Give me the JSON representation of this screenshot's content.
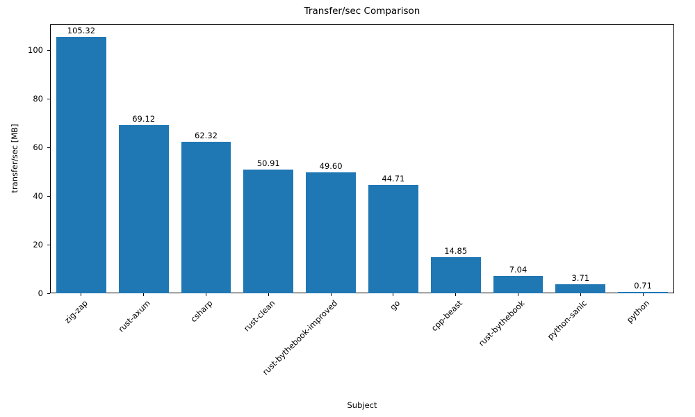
{
  "chart_data": {
    "type": "bar",
    "title": "Transfer/sec Comparison",
    "xlabel": "Subject",
    "ylabel": "transfer/sec [MB]",
    "categories": [
      "zig-zap",
      "rust-axum",
      "csharp",
      "rust-clean",
      "rust-bythebook-improved",
      "go",
      "cpp-beast",
      "rust-bythebook",
      "python-sanic",
      "python"
    ],
    "values": [
      105.32,
      69.12,
      62.32,
      50.91,
      49.6,
      44.71,
      14.85,
      7.04,
      3.71,
      0.71
    ],
    "bar_color": "#1f77b4",
    "ylim": [
      0,
      110.59
    ],
    "yticks": [
      0,
      20,
      40,
      60,
      80,
      100
    ],
    "grid": false,
    "legend": null,
    "value_label_decimals": 2
  }
}
